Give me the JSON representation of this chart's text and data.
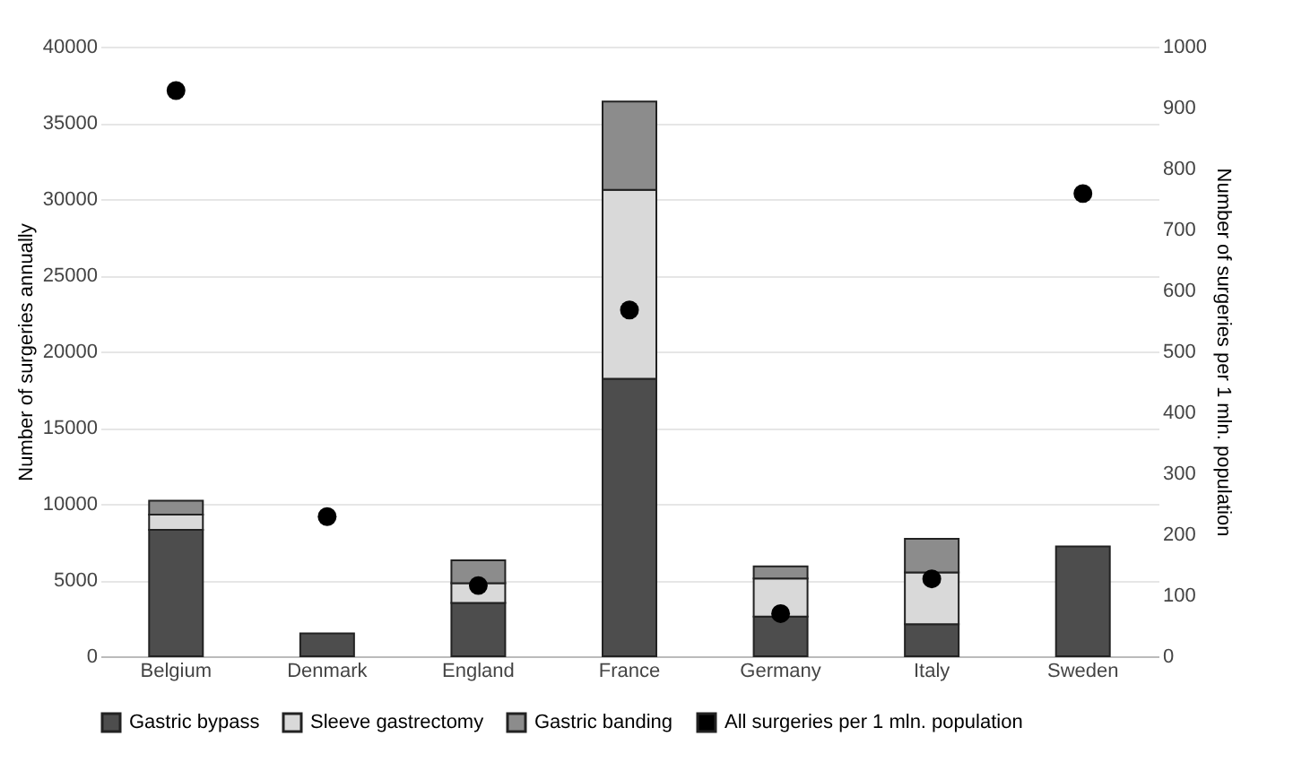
{
  "chart_data": {
    "type": "bar",
    "stacked": true,
    "ylabel": "Number of surgeries annually",
    "y2label": "Number of surgeries per 1 mln. population",
    "categories": [
      "Belgium",
      "Denmark",
      "England",
      "France",
      "Germany",
      "Italy",
      "Sweden"
    ],
    "series": [
      {
        "name": "Gastric bypass",
        "color": "#4d4d4d",
        "values": [
          8300,
          1500,
          3500,
          18200,
          2600,
          2100,
          7200
        ]
      },
      {
        "name": "Sleeve gastrectomy",
        "color": "#d9d9d9",
        "values": [
          1000,
          null,
          1300,
          12400,
          2500,
          3400,
          null
        ]
      },
      {
        "name": "Gastric banding",
        "color": "#8c8c8c",
        "values": [
          900,
          null,
          1500,
          5800,
          800,
          2200,
          null
        ]
      },
      {
        "name": "All surgeries per 1 mln. population",
        "type": "scatter",
        "axis": "y2",
        "color": "#000000",
        "values": [
          928,
          229,
          116,
          568,
          70,
          127,
          759
        ]
      }
    ],
    "ylim": [
      0,
      40000
    ],
    "yticks": [
      0,
      5000,
      10000,
      15000,
      20000,
      25000,
      30000,
      35000,
      40000
    ],
    "y2lim": [
      0,
      1000
    ],
    "y2ticks": [
      0,
      100,
      200,
      300,
      400,
      500,
      600,
      700,
      800,
      900,
      1000
    ],
    "grid": "y",
    "legend": "bottom",
    "marker": "circle"
  }
}
